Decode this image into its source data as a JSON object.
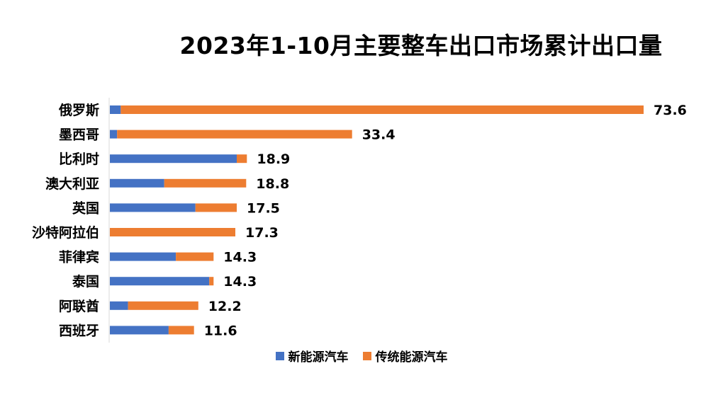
{
  "chart_data": {
    "type": "bar",
    "orientation": "horizontal",
    "stacked": true,
    "title": "2023年1-10月主要整车出口市场累计出口量",
    "categories": [
      "俄罗斯",
      "墨西哥",
      "比利时",
      "澳大利亚",
      "英国",
      "沙特阿拉伯",
      "菲律宾",
      "泰国",
      "阿联酋",
      "西班牙"
    ],
    "totals": [
      "73.6",
      "33.4",
      "18.9",
      "18.8",
      "17.5",
      "17.3",
      "14.3",
      "14.3",
      "12.2",
      "11.6"
    ],
    "series": [
      {
        "name": "新能源汽车",
        "color": "#4472C4",
        "values": [
          1.5,
          1.0,
          17.5,
          7.5,
          11.8,
          0.0,
          9.1,
          13.7,
          2.5,
          8.1
        ]
      },
      {
        "name": "传统能源汽车",
        "color": "#ED7D31",
        "values": [
          72.1,
          32.4,
          1.4,
          11.3,
          5.7,
          17.3,
          5.2,
          0.6,
          9.7,
          3.5
        ]
      }
    ],
    "xlim": [
      0,
      75
    ],
    "grid": false,
    "legend_position": "bottom"
  }
}
